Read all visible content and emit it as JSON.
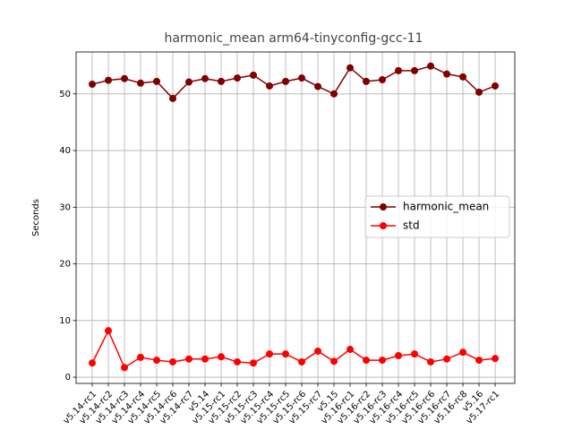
{
  "chart_data": {
    "type": "line",
    "title": "harmonic_mean arm64-tinyconfig-gcc-11",
    "y_label": "Seconds",
    "categories": [
      "v5.14-rc1",
      "v5.14-rc2",
      "v5.14-rc3",
      "v5.14-rc4",
      "v5.14-rc5",
      "v5.14-rc6",
      "v5.14-rc7",
      "v5.14",
      "v5.15-rc1",
      "v5.15-rc2",
      "v5.15-rc3",
      "v5.15-rc4",
      "v5.15-rc5",
      "v5.15-rc6",
      "v5.15-rc7",
      "v5.15",
      "v5.16-rc1",
      "v5.16-rc2",
      "v5.16-rc3",
      "v5.16-rc4",
      "v5.16-rc5",
      "v5.16-rc6",
      "v5.16-rc7",
      "v5.16-rc8",
      "v5.16",
      "v5.17-rc1"
    ],
    "series": [
      {
        "name": "harmonic_mean",
        "color": "#800000",
        "values": [
          51.7,
          52.4,
          52.7,
          51.9,
          52.2,
          49.2,
          52.1,
          52.7,
          52.2,
          52.8,
          53.3,
          51.4,
          52.2,
          52.8,
          51.3,
          50.0,
          54.6,
          52.2,
          52.5,
          54.1,
          54.1,
          54.9,
          53.5,
          53.0,
          50.3,
          51.4
        ]
      },
      {
        "name": "std",
        "color": "#ff0000",
        "values": [
          2.5,
          8.2,
          1.7,
          3.5,
          3.0,
          2.7,
          3.2,
          3.2,
          3.6,
          2.7,
          2.5,
          4.1,
          4.1,
          2.7,
          4.6,
          2.8,
          4.9,
          3.0,
          3.0,
          3.8,
          4.1,
          2.7,
          3.2,
          4.4,
          3.0,
          3.3
        ]
      }
    ],
    "ylim": [
      -1.1,
      57.4
    ],
    "yticks": [
      0,
      10,
      20,
      30,
      40,
      50
    ],
    "grid": true,
    "legend": "center right"
  }
}
